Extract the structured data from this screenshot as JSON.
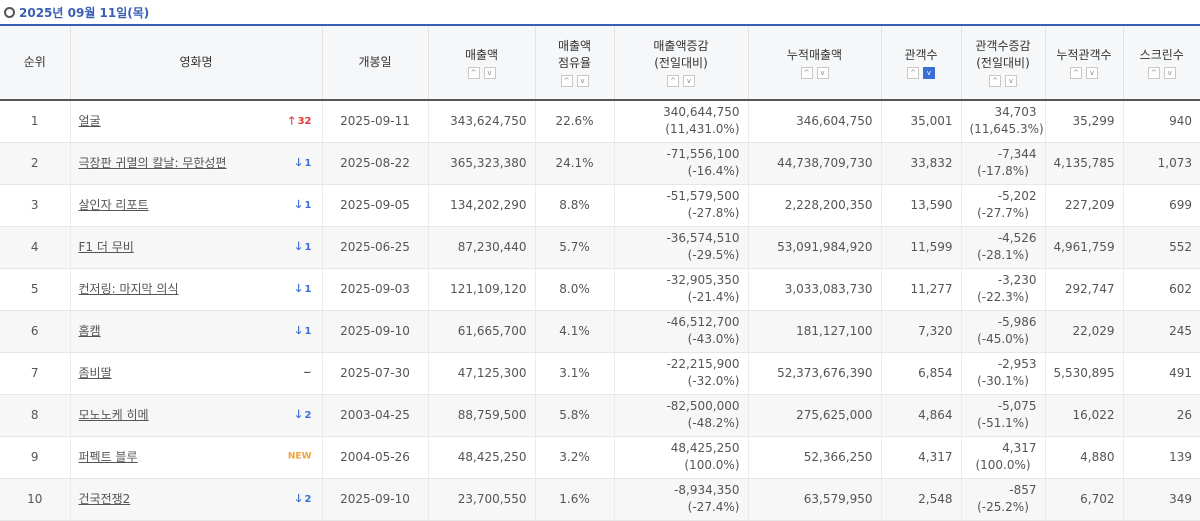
{
  "date_label": "2025년 09월 11일(목)",
  "headers": {
    "rank": "순위",
    "title": "영화명",
    "open": "개봉일",
    "sales": "매출액",
    "share_l1": "매출액",
    "share_l2": "점유율",
    "sales_change_l1": "매출액증감",
    "sales_change_l2": "(전일대비)",
    "cum_sales": "누적매출액",
    "audience": "관객수",
    "aud_change_l1": "관객수증감",
    "aud_change_l2": "(전일대비)",
    "cum_audience": "누적관객수",
    "screens": "스크린수"
  },
  "sort": {
    "up": "^",
    "down": "v"
  },
  "rows": [
    {
      "rank": "1",
      "title": "얼굴",
      "change": "32",
      "change_type": "up",
      "open": "2025-09-11",
      "sales": "343,624,750",
      "share": "22.6%",
      "sc1": "340,644,750",
      "sc2": "(11,431.0%)",
      "cum_sales": "346,604,750",
      "aud": "35,001",
      "ac1": "34,703",
      "ac2": "(11,645.3%)",
      "cum_aud": "35,299",
      "screens": "940"
    },
    {
      "rank": "2",
      "title": "극장판 귀멸의 칼날: 무한성편",
      "change": "1",
      "change_type": "down",
      "open": "2025-08-22",
      "sales": "365,323,380",
      "share": "24.1%",
      "sc1": "-71,556,100",
      "sc2": "(-16.4%)",
      "cum_sales": "44,738,709,730",
      "aud": "33,832",
      "ac1": "-7,344",
      "ac2": "(-17.8%)",
      "cum_aud": "4,135,785",
      "screens": "1,073"
    },
    {
      "rank": "3",
      "title": "살인자 리포트",
      "change": "1",
      "change_type": "down",
      "open": "2025-09-05",
      "sales": "134,202,290",
      "share": "8.8%",
      "sc1": "-51,579,500",
      "sc2": "(-27.8%)",
      "cum_sales": "2,228,200,350",
      "aud": "13,590",
      "ac1": "-5,202",
      "ac2": "(-27.7%)",
      "cum_aud": "227,209",
      "screens": "699"
    },
    {
      "rank": "4",
      "title": "F1 더 무비",
      "change": "1",
      "change_type": "down",
      "open": "2025-06-25",
      "sales": "87,230,440",
      "share": "5.7%",
      "sc1": "-36,574,510",
      "sc2": "(-29.5%)",
      "cum_sales": "53,091,984,920",
      "aud": "11,599",
      "ac1": "-4,526",
      "ac2": "(-28.1%)",
      "cum_aud": "4,961,759",
      "screens": "552"
    },
    {
      "rank": "5",
      "title": "컨저링: 마지막 의식",
      "change": "1",
      "change_type": "down",
      "open": "2025-09-03",
      "sales": "121,109,120",
      "share": "8.0%",
      "sc1": "-32,905,350",
      "sc2": "(-21.4%)",
      "cum_sales": "3,033,083,730",
      "aud": "11,277",
      "ac1": "-3,230",
      "ac2": "(-22.3%)",
      "cum_aud": "292,747",
      "screens": "602"
    },
    {
      "rank": "6",
      "title": "홈캠",
      "change": "1",
      "change_type": "down",
      "open": "2025-09-10",
      "sales": "61,665,700",
      "share": "4.1%",
      "sc1": "-46,512,700",
      "sc2": "(-43.0%)",
      "cum_sales": "181,127,100",
      "aud": "7,320",
      "ac1": "-5,986",
      "ac2": "(-45.0%)",
      "cum_aud": "22,029",
      "screens": "245"
    },
    {
      "rank": "7",
      "title": "좀비딸",
      "change": "−",
      "change_type": "flat",
      "open": "2025-07-30",
      "sales": "47,125,300",
      "share": "3.1%",
      "sc1": "-22,215,900",
      "sc2": "(-32.0%)",
      "cum_sales": "52,373,676,390",
      "aud": "6,854",
      "ac1": "-2,953",
      "ac2": "(-30.1%)",
      "cum_aud": "5,530,895",
      "screens": "491"
    },
    {
      "rank": "8",
      "title": "모노노케 히메",
      "change": "2",
      "change_type": "down",
      "open": "2003-04-25",
      "sales": "88,759,500",
      "share": "5.8%",
      "sc1": "-82,500,000",
      "sc2": "(-48.2%)",
      "cum_sales": "275,625,000",
      "aud": "4,864",
      "ac1": "-5,075",
      "ac2": "(-51.1%)",
      "cum_aud": "16,022",
      "screens": "26"
    },
    {
      "rank": "9",
      "title": "퍼펙트 블루",
      "change": "NEW",
      "change_type": "new",
      "open": "2004-05-26",
      "sales": "48,425,250",
      "share": "3.2%",
      "sc1": "48,425,250",
      "sc2": "(100.0%)",
      "cum_sales": "52,366,250",
      "aud": "4,317",
      "ac1": "4,317",
      "ac2": "(100.0%)",
      "cum_aud": "4,880",
      "screens": "139"
    },
    {
      "rank": "10",
      "title": "건국전쟁2",
      "change": "2",
      "change_type": "down",
      "open": "2025-09-10",
      "sales": "23,700,550",
      "share": "1.6%",
      "sc1": "-8,934,350",
      "sc2": "(-27.4%)",
      "cum_sales": "63,579,950",
      "aud": "2,548",
      "ac1": "-857",
      "ac2": "(-25.2%)",
      "cum_aud": "6,702",
      "screens": "349"
    }
  ]
}
